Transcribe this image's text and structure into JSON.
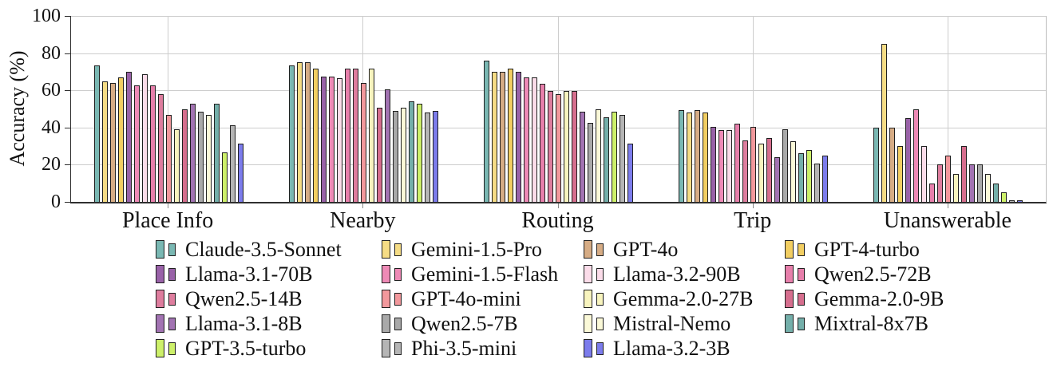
{
  "chart_data": {
    "type": "bar",
    "title": "",
    "xlabel": "",
    "ylabel": "Accuracy (%)",
    "ylim": [
      0,
      100
    ],
    "yticks": [
      0,
      20,
      40,
      60,
      80,
      100
    ],
    "grid": true,
    "legend_position": "below",
    "legend_columns": 4,
    "categories": [
      "Place Info",
      "Nearby",
      "Routing",
      "Trip",
      "Unanswerable"
    ],
    "series": [
      {
        "name": "Claude-3.5-Sonnet",
        "color": "#7ab8b3",
        "values": [
          73.5,
          73.5,
          76,
          49.5,
          40
        ]
      },
      {
        "name": "Gemini-1.5-Pro",
        "color": "#f5dc85",
        "values": [
          65,
          75,
          70,
          48,
          85
        ]
      },
      {
        "name": "GPT-4o",
        "color": "#d6ac85",
        "values": [
          64,
          75,
          70,
          49.5,
          40
        ]
      },
      {
        "name": "GPT-4-turbo",
        "color": "#f2ce62",
        "values": [
          67,
          71.5,
          71.5,
          48,
          30
        ]
      },
      {
        "name": "Llama-3.1-70B",
        "color": "#9962a8",
        "values": [
          70,
          67.5,
          70,
          40.5,
          45
        ]
      },
      {
        "name": "Gemini-1.5-Flash",
        "color": "#ee8ab6",
        "values": [
          62.5,
          67.5,
          67,
          38.5,
          50
        ]
      },
      {
        "name": "Llama-3.2-90B",
        "color": "#fbdce9",
        "values": [
          68.5,
          66.5,
          67,
          38.5,
          30
        ]
      },
      {
        "name": "Qwen2.5-72B",
        "color": "#e77fab",
        "values": [
          62.5,
          71.5,
          63.5,
          42,
          10
        ]
      },
      {
        "name": "Qwen2.5-14B",
        "color": "#de7d9e",
        "values": [
          58,
          71.5,
          59.5,
          33,
          20
        ]
      },
      {
        "name": "GPT-4o-mini",
        "color": "#f2989c",
        "values": [
          47,
          64,
          58,
          40.5,
          25
        ]
      },
      {
        "name": "Gemma-2.0-27B",
        "color": "#f8f4be",
        "values": [
          39,
          71.5,
          59.5,
          31.5,
          15
        ]
      },
      {
        "name": "Gemma-2.0-9B",
        "color": "#d66e8e",
        "values": [
          50,
          50.5,
          59.5,
          34.5,
          30
        ]
      },
      {
        "name": "Llama-3.1-8B",
        "color": "#a273b2",
        "values": [
          53,
          60.5,
          48.5,
          24,
          20
        ]
      },
      {
        "name": "Qwen2.5-7B",
        "color": "#a9a9a9",
        "values": [
          48.5,
          49,
          42.5,
          39,
          20
        ]
      },
      {
        "name": "Mistral-Nemo",
        "color": "#fbf9d8",
        "values": [
          47,
          50.5,
          50,
          32.5,
          15
        ]
      },
      {
        "name": "Mixtral-8x7B",
        "color": "#74afaa",
        "values": [
          53,
          54,
          45.5,
          26,
          10
        ]
      },
      {
        "name": "GPT-3.5-turbo",
        "color": "#cdf06a",
        "values": [
          26.5,
          53,
          48.5,
          28,
          5
        ]
      },
      {
        "name": "Phi-3.5-mini",
        "color": "#b5b5b5",
        "values": [
          41,
          48,
          47,
          20.5,
          0
        ]
      },
      {
        "name": "Llama-3.2-3B",
        "color": "#7c7cec",
        "values": [
          31.5,
          49,
          31.5,
          25,
          0
        ]
      }
    ]
  }
}
